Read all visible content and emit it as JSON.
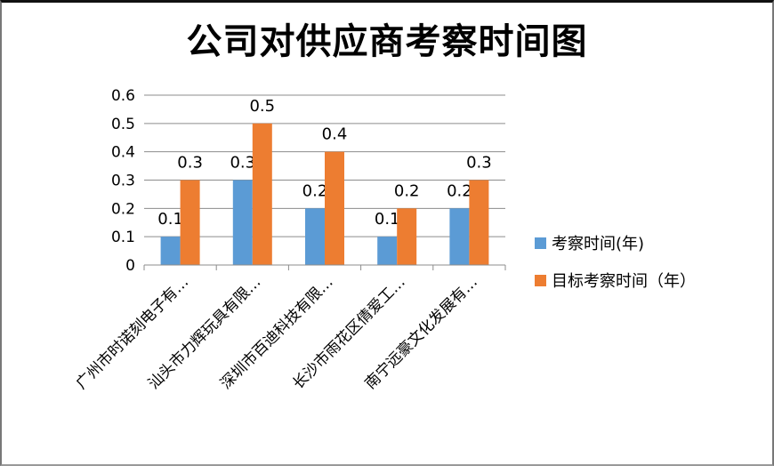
{
  "chart_data": {
    "type": "bar",
    "title": "公司对供应商考察时间图",
    "categories": [
      "广州市时诺刻电子有…",
      "汕头市力辉玩具有限…",
      "深圳市百迪科技有限…",
      "长沙市雨花区倩爱工…",
      "南宁远豪文化发展有…"
    ],
    "series": [
      {
        "name": "考察时间(年)",
        "color": "#5b9bd5",
        "values": [
          0.1,
          0.3,
          0.2,
          0.1,
          0.2
        ]
      },
      {
        "name": "目标考察时间（年）",
        "color": "#ed7d31",
        "values": [
          0.3,
          0.5,
          0.4,
          0.2,
          0.3
        ]
      }
    ],
    "yticks": [
      "0",
      "0.1",
      "0.2",
      "0.3",
      "0.4",
      "0.5",
      "0.6"
    ],
    "ylim": [
      0,
      0.6
    ],
    "grid": true,
    "legend": "right"
  }
}
